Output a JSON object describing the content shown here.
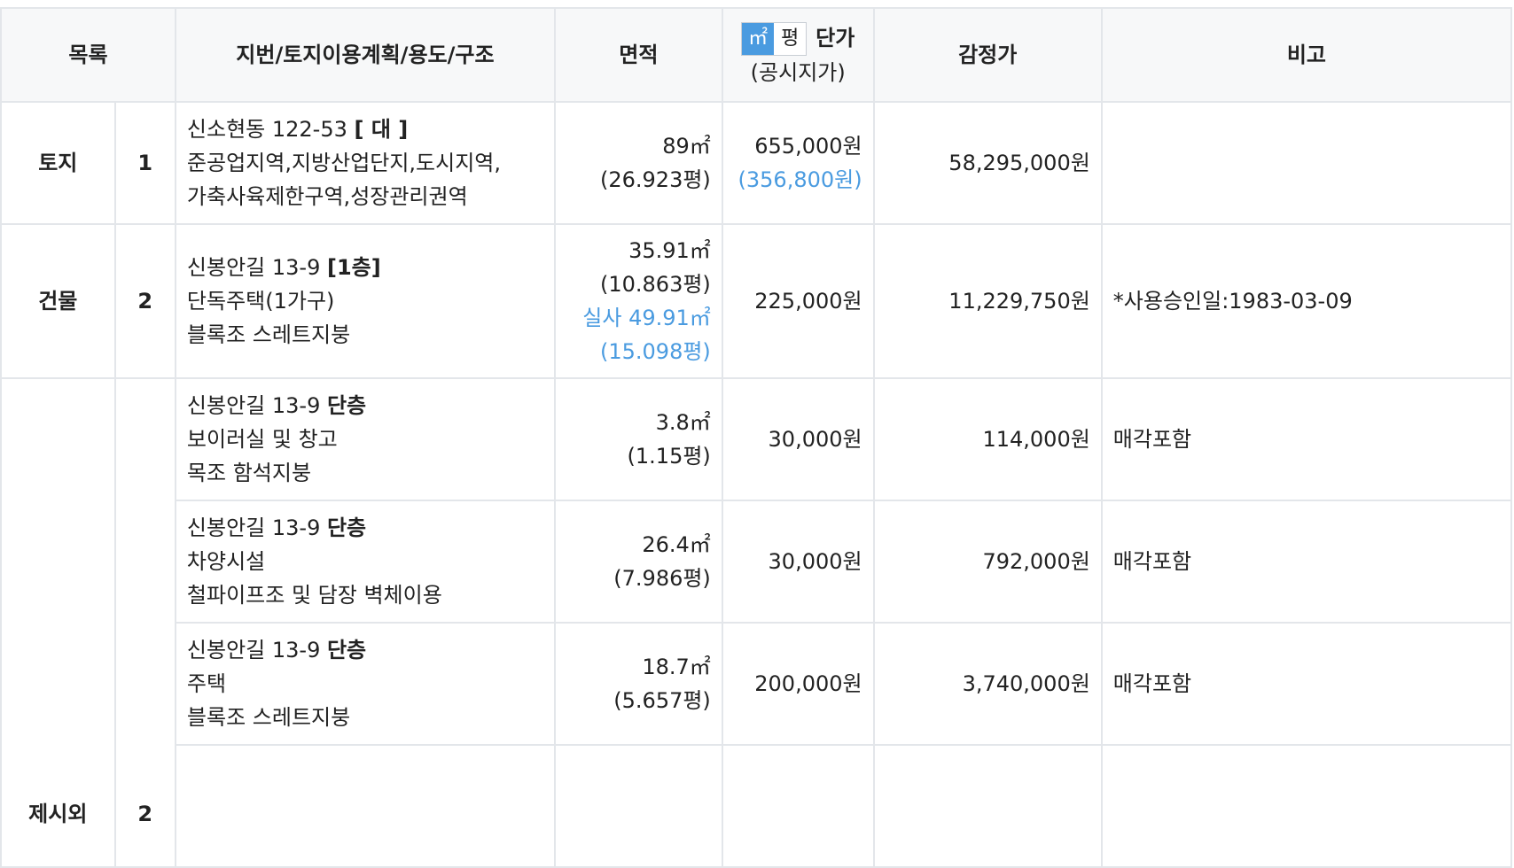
{
  "header": {
    "category": "목록",
    "address": "지번/토지이용계획/용도/구조",
    "area": "면적",
    "unit_toggle": {
      "sqm": "㎡",
      "pyeong": "평"
    },
    "unit_price": "단가",
    "unit_price_sub": "(공시지가)",
    "appraisal": "감정가",
    "remarks": "비고"
  },
  "rows": {
    "land": {
      "category": "토지",
      "no": "1",
      "addr_line1": "신소현동 122-53 ",
      "addr_tag": "[ 대 ]",
      "addr_line2": "준공업지역,지방산업단지,도시지역,",
      "addr_line3": "가축사육제한구역,성장관리권역",
      "area": "89㎡",
      "area_py": "(26.923평)",
      "unit_price": "655,000원",
      "unit_price_sub": "(356,800원)",
      "appraisal": "58,295,000원",
      "remarks": ""
    },
    "building": {
      "category": "건물",
      "no": "2",
      "addr_line1": "신봉안길 13-9 ",
      "addr_tag": "[1층]",
      "addr_line2": "단독주택(1가구)",
      "addr_line3": "블록조 스레트지붕",
      "area": "35.91㎡",
      "area_py": "(10.863평)",
      "area_actual": "실사 49.91㎡",
      "area_actual_py": "(15.098평)",
      "unit_price": "225,000원",
      "appraisal": "11,229,750원",
      "remarks": "*사용승인일:1983-03-09"
    },
    "extra": {
      "category": "제시외",
      "no": "2",
      "items": [
        {
          "addr_line1": "신봉안길 13-9 ",
          "addr_tag": "단층",
          "addr_line2": "보이러실 및 창고",
          "addr_line3": "목조 함석지붕",
          "area": "3.8㎡",
          "area_py": "(1.15평)",
          "unit_price": "30,000원",
          "appraisal": "114,000원",
          "remarks": "매각포함"
        },
        {
          "addr_line1": "신봉안길 13-9 ",
          "addr_tag": "단층",
          "addr_line2": "차양시설",
          "addr_line3": "철파이프조 및 담장 벽체이용",
          "area": "26.4㎡",
          "area_py": "(7.986평)",
          "unit_price": "30,000원",
          "appraisal": "792,000원",
          "remarks": "매각포함"
        },
        {
          "addr_line1": "신봉안길 13-9 ",
          "addr_tag": "단층",
          "addr_line2": "주택",
          "addr_line3": "블록조 스레트지붕",
          "area": "18.7㎡",
          "area_py": "(5.657평)",
          "unit_price": "200,000원",
          "appraisal": "3,740,000원",
          "remarks": "매각포함"
        }
      ]
    }
  },
  "colors": {
    "accent": "#4a9be0",
    "header_bg": "#f7f8f9",
    "border": "#e3e6ea"
  }
}
